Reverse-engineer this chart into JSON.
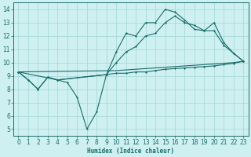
{
  "xlabel": "Humidex (Indice chaleur)",
  "xlim": [
    -0.5,
    23.5
  ],
  "ylim": [
    4.5,
    14.5
  ],
  "xticks": [
    0,
    1,
    2,
    3,
    4,
    5,
    6,
    7,
    8,
    9,
    10,
    11,
    12,
    13,
    14,
    15,
    16,
    17,
    18,
    19,
    20,
    21,
    22,
    23
  ],
  "yticks": [
    5,
    6,
    7,
    8,
    9,
    10,
    11,
    12,
    13,
    14
  ],
  "background_color": "#cff0f0",
  "grid_color": "#a8dada",
  "line_color": "#1a6b6b",
  "series": [
    {
      "x": [
        0,
        1,
        2,
        3,
        4,
        5,
        6,
        7,
        8,
        9,
        10,
        11,
        12,
        13,
        14,
        15,
        16,
        17,
        18,
        19,
        20,
        21,
        22,
        23
      ],
      "y": [
        9.3,
        8.7,
        8.0,
        8.9,
        8.7,
        8.5,
        7.4,
        5.0,
        6.3,
        9.1,
        9.2,
        9.2,
        9.3,
        9.3,
        9.4,
        9.5,
        9.55,
        9.6,
        9.65,
        9.7,
        9.75,
        9.85,
        9.95,
        10.1
      ],
      "marker": true
    },
    {
      "x": [
        0,
        1,
        2,
        3,
        4,
        9,
        10,
        11,
        12,
        13,
        14,
        15,
        16,
        17,
        18,
        19,
        20,
        21,
        22,
        23
      ],
      "y": [
        9.3,
        8.7,
        8.0,
        8.9,
        8.7,
        9.1,
        10.8,
        12.2,
        12.0,
        13.0,
        13.0,
        14.0,
        13.8,
        13.2,
        12.5,
        12.4,
        13.0,
        11.5,
        10.7,
        10.1
      ],
      "marker": true
    },
    {
      "x": [
        0,
        4,
        9,
        10,
        11,
        12,
        13,
        14,
        15,
        16,
        17,
        18,
        19,
        20,
        21,
        22,
        23
      ],
      "y": [
        9.3,
        8.7,
        9.1,
        10.0,
        10.8,
        11.2,
        12.0,
        12.2,
        13.0,
        13.5,
        13.0,
        12.8,
        12.4,
        12.4,
        11.3,
        10.7,
        10.1
      ],
      "marker": true
    },
    {
      "x": [
        0,
        10,
        11,
        12,
        13,
        14,
        15,
        16,
        17,
        18,
        19,
        20,
        21,
        22,
        23
      ],
      "y": [
        9.3,
        9.4,
        9.45,
        9.5,
        9.55,
        9.6,
        9.65,
        9.7,
        9.75,
        9.8,
        9.85,
        9.9,
        9.95,
        10.0,
        10.1
      ],
      "marker": false
    }
  ]
}
